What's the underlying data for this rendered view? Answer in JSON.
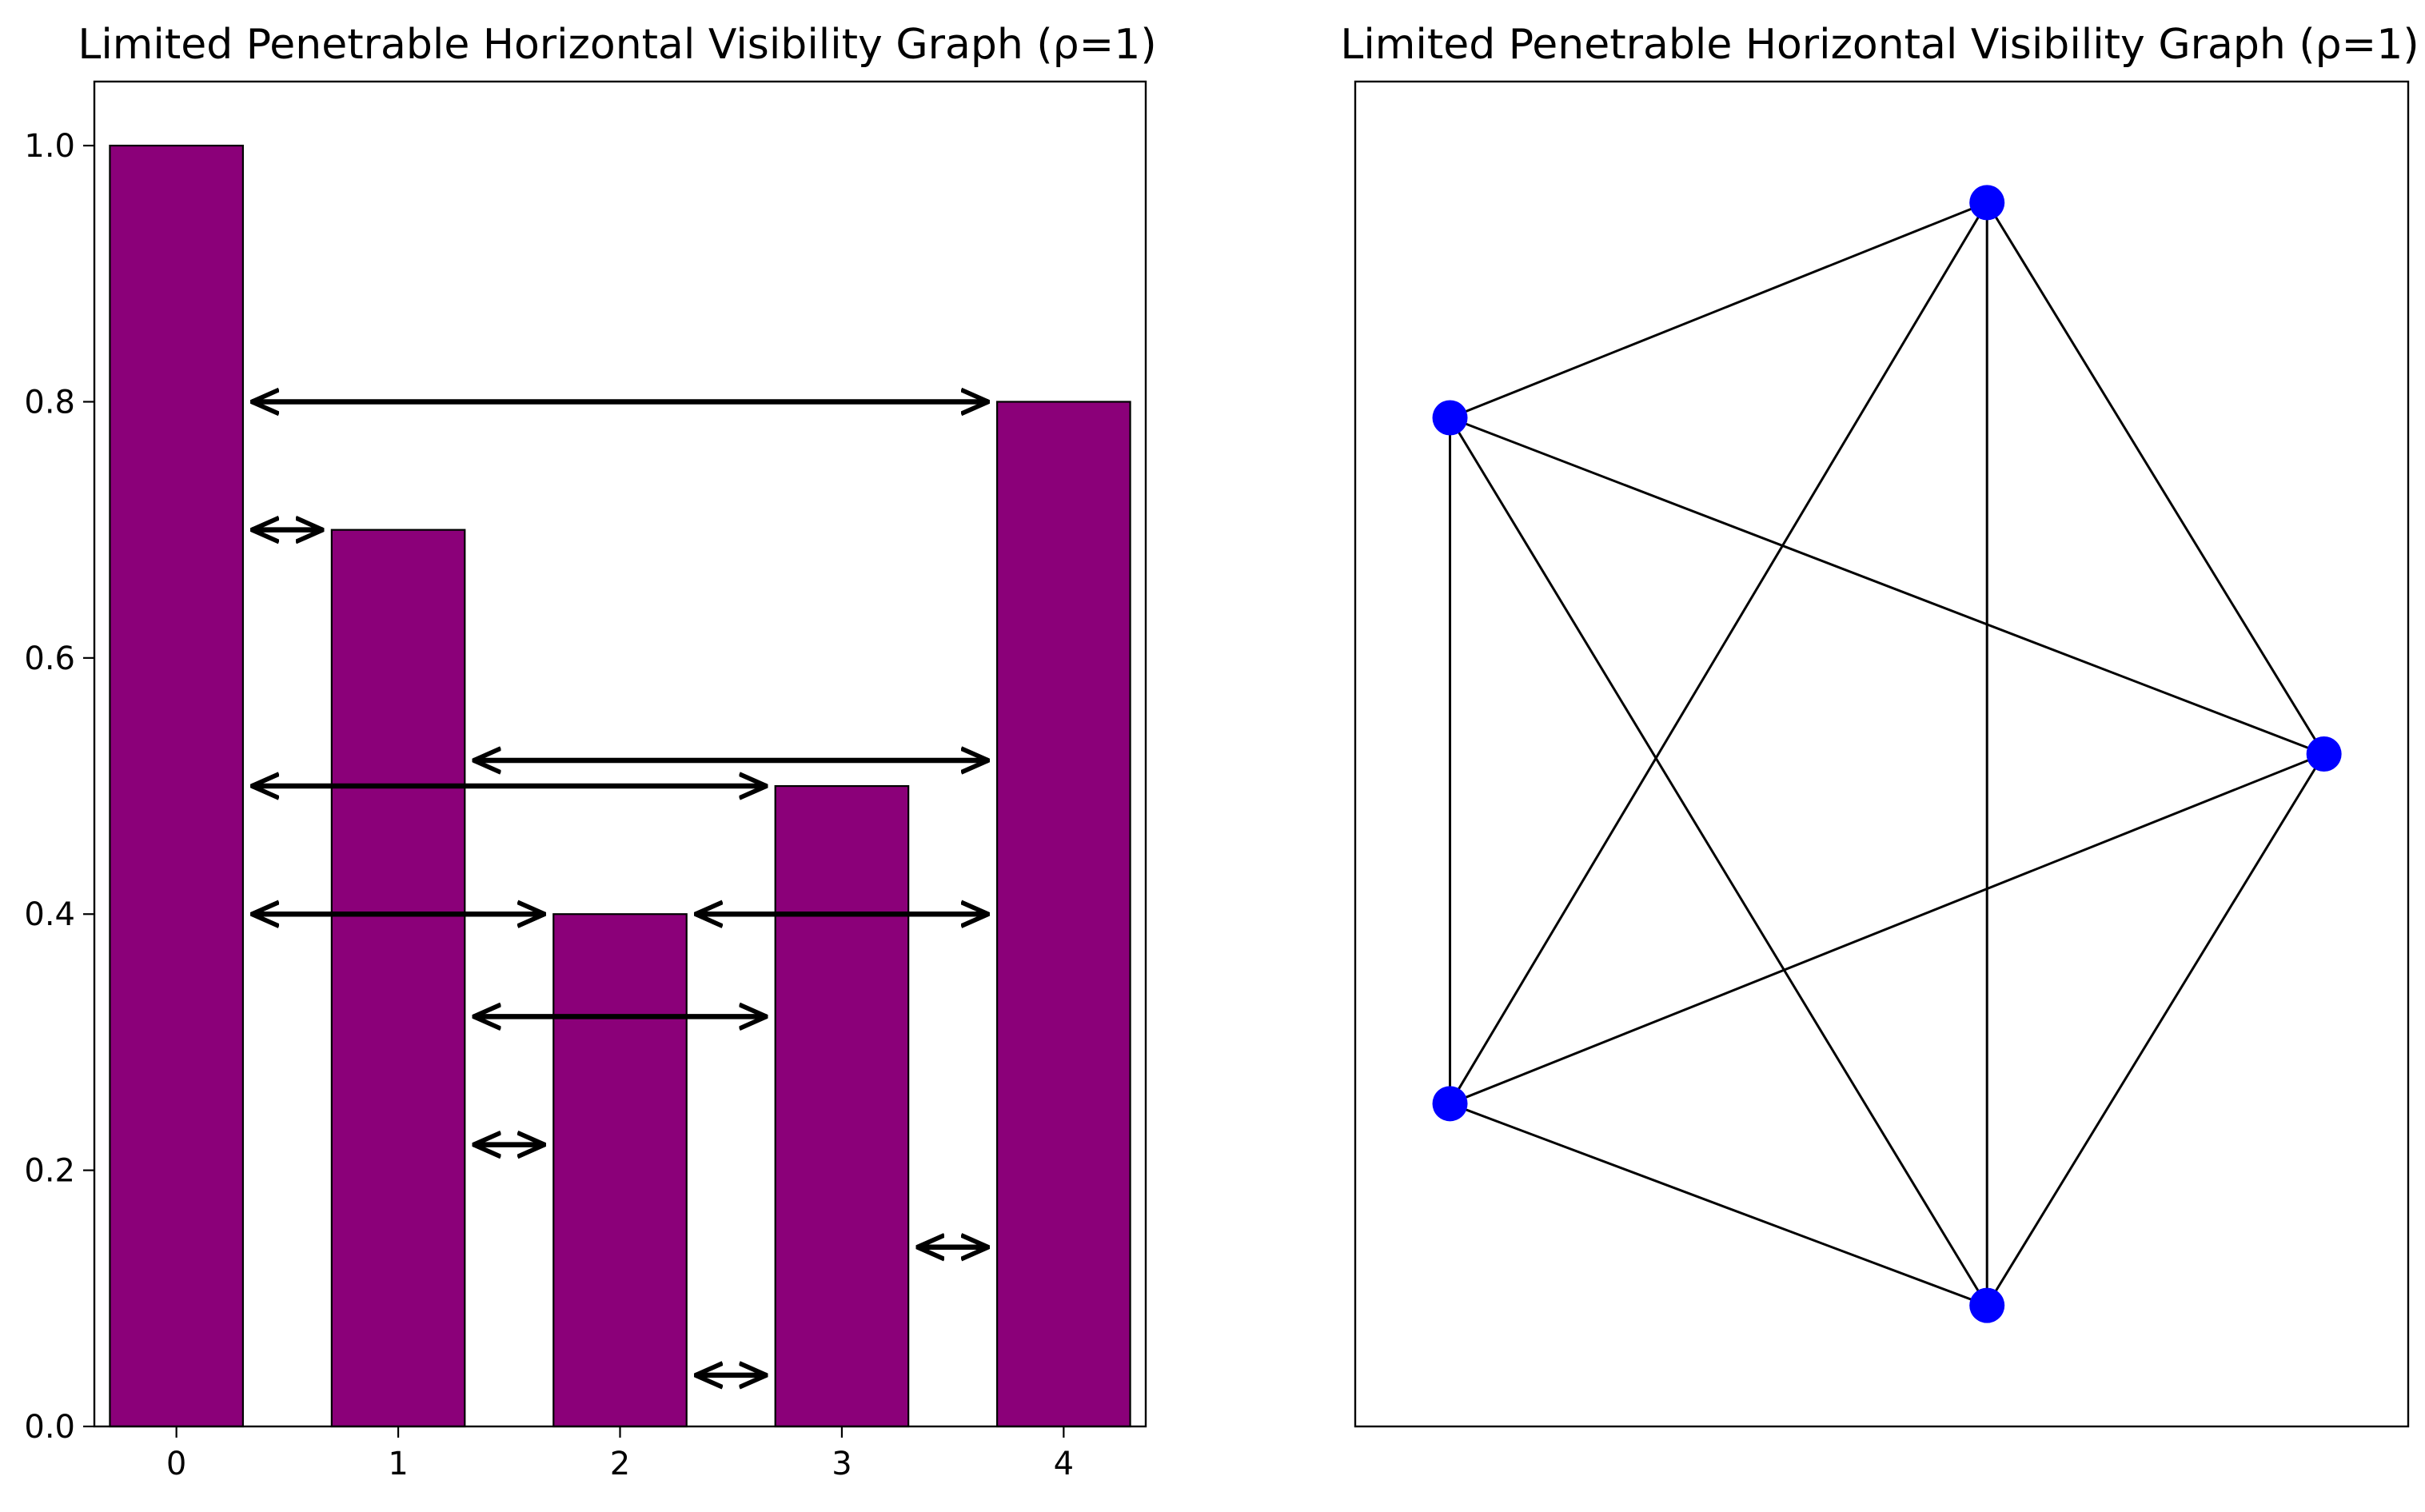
{
  "chart_data": [
    {
      "type": "bar",
      "title": "Limited Penetrable Horizontal Visibility Graph (ρ=1)",
      "categories": [
        "0",
        "1",
        "2",
        "3",
        "4"
      ],
      "x": [
        0,
        1,
        2,
        3,
        4
      ],
      "values": [
        1.0,
        0.7,
        0.4,
        0.5,
        0.8
      ],
      "xlabel": "",
      "ylabel": "",
      "ylim": [
        0,
        1.05
      ],
      "xlim": [
        -0.37,
        4.37
      ],
      "yticks": [
        {
          "value": 0.0,
          "label": "0.0"
        },
        {
          "value": 0.2,
          "label": "0.2"
        },
        {
          "value": 0.4,
          "label": "0.4"
        },
        {
          "value": 0.6,
          "label": "0.6"
        },
        {
          "value": 0.8,
          "label": "0.8"
        },
        {
          "value": 1.0,
          "label": "1.0"
        }
      ],
      "xticks": [
        {
          "value": 0,
          "label": "0"
        },
        {
          "value": 1,
          "label": "1"
        },
        {
          "value": 2,
          "label": "2"
        },
        {
          "value": 3,
          "label": "3"
        },
        {
          "value": 4,
          "label": "4"
        }
      ],
      "bar_color": "#8b0079",
      "grid": false,
      "visibility_arrows": [
        {
          "from": 0,
          "to": 4,
          "y": 0.8
        },
        {
          "from": 0,
          "to": 1,
          "y": 0.7
        },
        {
          "from": 1,
          "to": 4,
          "y": 0.52
        },
        {
          "from": 0,
          "to": 3,
          "y": 0.5
        },
        {
          "from": 0,
          "to": 2,
          "y": 0.4
        },
        {
          "from": 2,
          "to": 4,
          "y": 0.4
        },
        {
          "from": 1,
          "to": 3,
          "y": 0.32
        },
        {
          "from": 1,
          "to": 2,
          "y": 0.22
        },
        {
          "from": 3,
          "to": 4,
          "y": 0.14
        },
        {
          "from": 2,
          "to": 3,
          "y": 0.04
        }
      ]
    },
    {
      "type": "network",
      "title": "Limited Penetrable Horizontal Visibility Graph (ρ=1)",
      "node_color": "#0000ff",
      "edge_color": "#000000",
      "nodes": [
        {
          "id": 0,
          "x": 0.92,
          "y": 0.5
        },
        {
          "id": 1,
          "x": 0.6,
          "y": 0.91
        },
        {
          "id": 2,
          "x": 0.09,
          "y": 0.75
        },
        {
          "id": 3,
          "x": 0.09,
          "y": 0.24
        },
        {
          "id": 4,
          "x": 0.6,
          "y": 0.09
        }
      ],
      "edges": [
        [
          0,
          1
        ],
        [
          0,
          2
        ],
        [
          0,
          3
        ],
        [
          0,
          4
        ],
        [
          1,
          2
        ],
        [
          1,
          3
        ],
        [
          1,
          4
        ],
        [
          2,
          3
        ],
        [
          2,
          4
        ],
        [
          3,
          4
        ]
      ]
    }
  ]
}
